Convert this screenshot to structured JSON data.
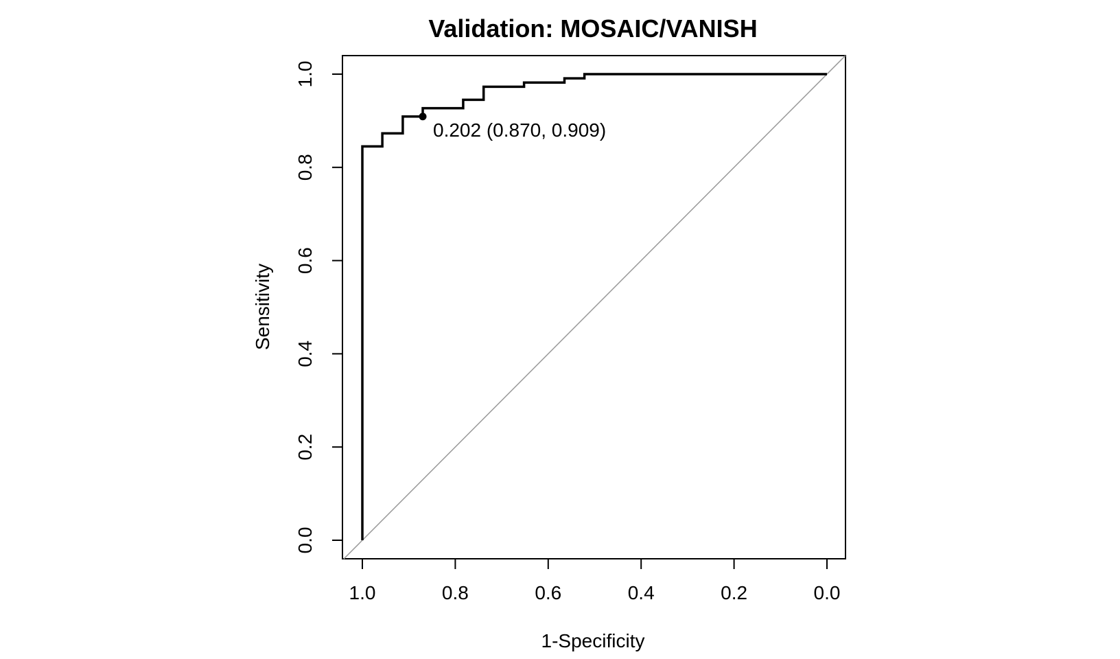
{
  "chart_data": {
    "type": "line",
    "title": "Validation: MOSAIC/VANISH",
    "xlabel": "1-Specificity",
    "ylabel": "Sensitivity",
    "xlim": [
      1.0,
      0.0
    ],
    "ylim": [
      0.0,
      1.0
    ],
    "x_reversed": true,
    "grid": false,
    "x_ticks": [
      "1.0",
      "0.8",
      "0.6",
      "0.4",
      "0.2",
      "0.0"
    ],
    "y_ticks": [
      "0.0",
      "0.2",
      "0.4",
      "0.6",
      "0.8",
      "1.0"
    ],
    "x_tick_values": [
      1.0,
      0.8,
      0.6,
      0.4,
      0.2,
      0.0
    ],
    "y_tick_values": [
      0.0,
      0.2,
      0.4,
      0.6,
      0.8,
      1.0
    ],
    "series": [
      {
        "x": [
          1.0,
          1.0,
          0.957,
          0.957,
          0.913,
          0.913,
          0.87,
          0.87,
          0.783,
          0.783,
          0.739,
          0.739,
          0.652,
          0.652,
          0.565,
          0.565,
          0.522,
          0.522,
          0.0
        ],
        "y": [
          0.0,
          0.845,
          0.845,
          0.873,
          0.873,
          0.909,
          0.909,
          0.927,
          0.927,
          0.945,
          0.945,
          0.973,
          0.973,
          0.982,
          0.982,
          0.991,
          0.991,
          1.0,
          1.0
        ],
        "color": "#000000"
      }
    ],
    "reference_line": {
      "x": [
        1.0,
        0.0
      ],
      "y": [
        0.0,
        1.0
      ],
      "color": "#999999"
    },
    "annotation": {
      "point": {
        "x": 0.87,
        "y": 0.909
      },
      "text": "0.202 (0.870, 0.909)"
    }
  }
}
